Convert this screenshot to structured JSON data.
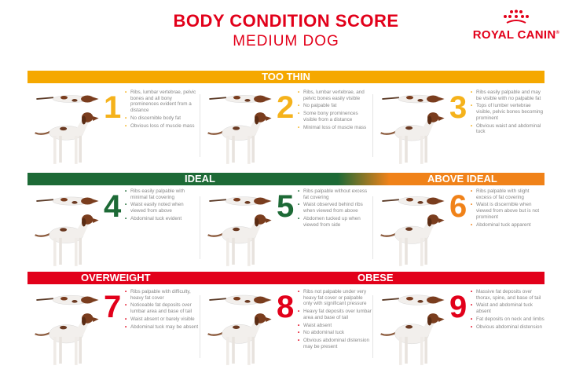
{
  "header": {
    "title": "BODY CONDITION SCORE",
    "subtitle": "MEDIUM DOG"
  },
  "logo": {
    "text": "ROYAL CANIN",
    "mark": "®"
  },
  "colors": {
    "too_thin": "#f5a800",
    "ideal": "#1d6a36",
    "above_ideal": "#f08219",
    "overweight": "#e2001a",
    "obese": "#e2001a"
  },
  "bands": {
    "too_thin": "TOO THIN",
    "ideal": "IDEAL",
    "above_ideal": "ABOVE IDEAL",
    "overweight": "OVERWEIGHT",
    "obese": "OBESE"
  },
  "scores": [
    {
      "num": "1",
      "color": "#f5b21b",
      "bullets": [
        "Ribs, lumbar vertebrae, pelvic bones and all bony prominences evident from a distance",
        "No discernible body fat",
        "Obvious loss of muscle mass"
      ]
    },
    {
      "num": "2",
      "color": "#f5b21b",
      "bullets": [
        "Ribs, lumbar vertebrae, and pelvic bones easily visible",
        "No palpable fat",
        "Some bony prominences visible from a distance",
        "Minimal loss of muscle mass"
      ]
    },
    {
      "num": "3",
      "color": "#f5b21b",
      "bullets": [
        "Ribs easily palpable and may be visible with no palpable fat",
        "Tops of lumber vertebrae visible, pelvic bones becoming prominent",
        "Obvious waist and abdominal tuck"
      ]
    },
    {
      "num": "4",
      "color": "#1d6a36",
      "bullets": [
        "Ribs easily palpable with minimal fat covering",
        "Waist easily noted when viewed from above",
        "Abdominal tuck evident"
      ]
    },
    {
      "num": "5",
      "color": "#1d6a36",
      "bullets": [
        "Ribs palpable without excess fat covering",
        "Waist observed behind ribs when viewed from above",
        "Abdomen tucked up when viewed from side"
      ]
    },
    {
      "num": "6",
      "color": "#f08219",
      "bullets": [
        "Ribs palpable with slight excess of fat covering",
        "Waist is discernible when viewed from above but is not prominent",
        "Abdominal tuck apparent"
      ]
    },
    {
      "num": "7",
      "color": "#e2001a",
      "bullets": [
        "Ribs palpable with difficulty, heavy fat cover",
        "Noticeable fat deposits over lumbar area and base of tail",
        "Waist absent or barely visible",
        "Abdominal tuck may be absent"
      ]
    },
    {
      "num": "8",
      "color": "#e2001a",
      "bullets": [
        "Ribs not palpable under very heavy fat cover or palpable only with significant pressure",
        "Heavy fat deposits over lumbar area and base of tail",
        "Waist absent",
        "No abdominal tuck",
        "Obvious abdominal distension may be present"
      ]
    },
    {
      "num": "9",
      "color": "#e2001a",
      "bullets": [
        "Massive fat deposits over thorax, spine, and base of tail",
        "Waist and abdominal tuck absent",
        "Fat deposits on neck and limbs",
        "Obvious abdominal distension"
      ]
    }
  ]
}
